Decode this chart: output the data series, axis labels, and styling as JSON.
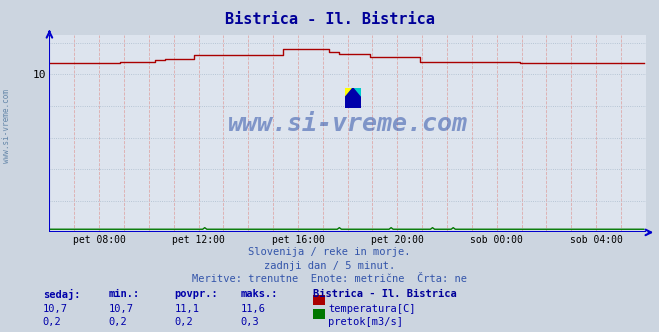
{
  "title": "Bistrica - Il. Bistrica",
  "title_color": "#000099",
  "bg_color": "#ccd5e0",
  "plot_bg_color": "#dde4ee",
  "grid_h_color": "#aabbcc",
  "grid_v_color": "#ddaaaa",
  "x_tick_labels": [
    "pet 08:00",
    "pet 12:00",
    "pet 16:00",
    "pet 20:00",
    "sob 00:00",
    "sob 04:00"
  ],
  "x_tick_fractions": [
    0.0833,
    0.25,
    0.4167,
    0.5833,
    0.75,
    0.9167
  ],
  "y_tick_val": 10,
  "ylim_min": 0,
  "ylim_max": 12.5,
  "xlim_min": 0,
  "xlim_max": 288,
  "temp_color": "#aa0000",
  "flow_color": "#007700",
  "axis_color": "#0000cc",
  "watermark_text_color": "#3355aa",
  "watermark_alpha": 0.55,
  "subtitle_color": "#3355aa",
  "subtitle1": "Slovenija / reke in morje.",
  "subtitle2": "zadnji dan / 5 minut.",
  "subtitle3": "Meritve: trenutne  Enote: metrične  Črta: ne",
  "table_header": [
    "sedaj:",
    "min.:",
    "povpr.:",
    "maks.:"
  ],
  "table_color": "#0000aa",
  "station_label": "Bistrica - Il. Bistrica",
  "station_color": "#000099",
  "row1_vals": [
    "10,7",
    "10,7",
    "11,1",
    "11,6"
  ],
  "row1_label": "temperatura[C]",
  "row1_color": "#aa0000",
  "row2_vals": [
    "0,2",
    "0,2",
    "0,2",
    "0,3"
  ],
  "row2_label": "pretok[m3/s]",
  "row2_color": "#007700",
  "num_points": 288,
  "left_label": "www.si-vreme.com",
  "left_label_color": "#6688aa"
}
